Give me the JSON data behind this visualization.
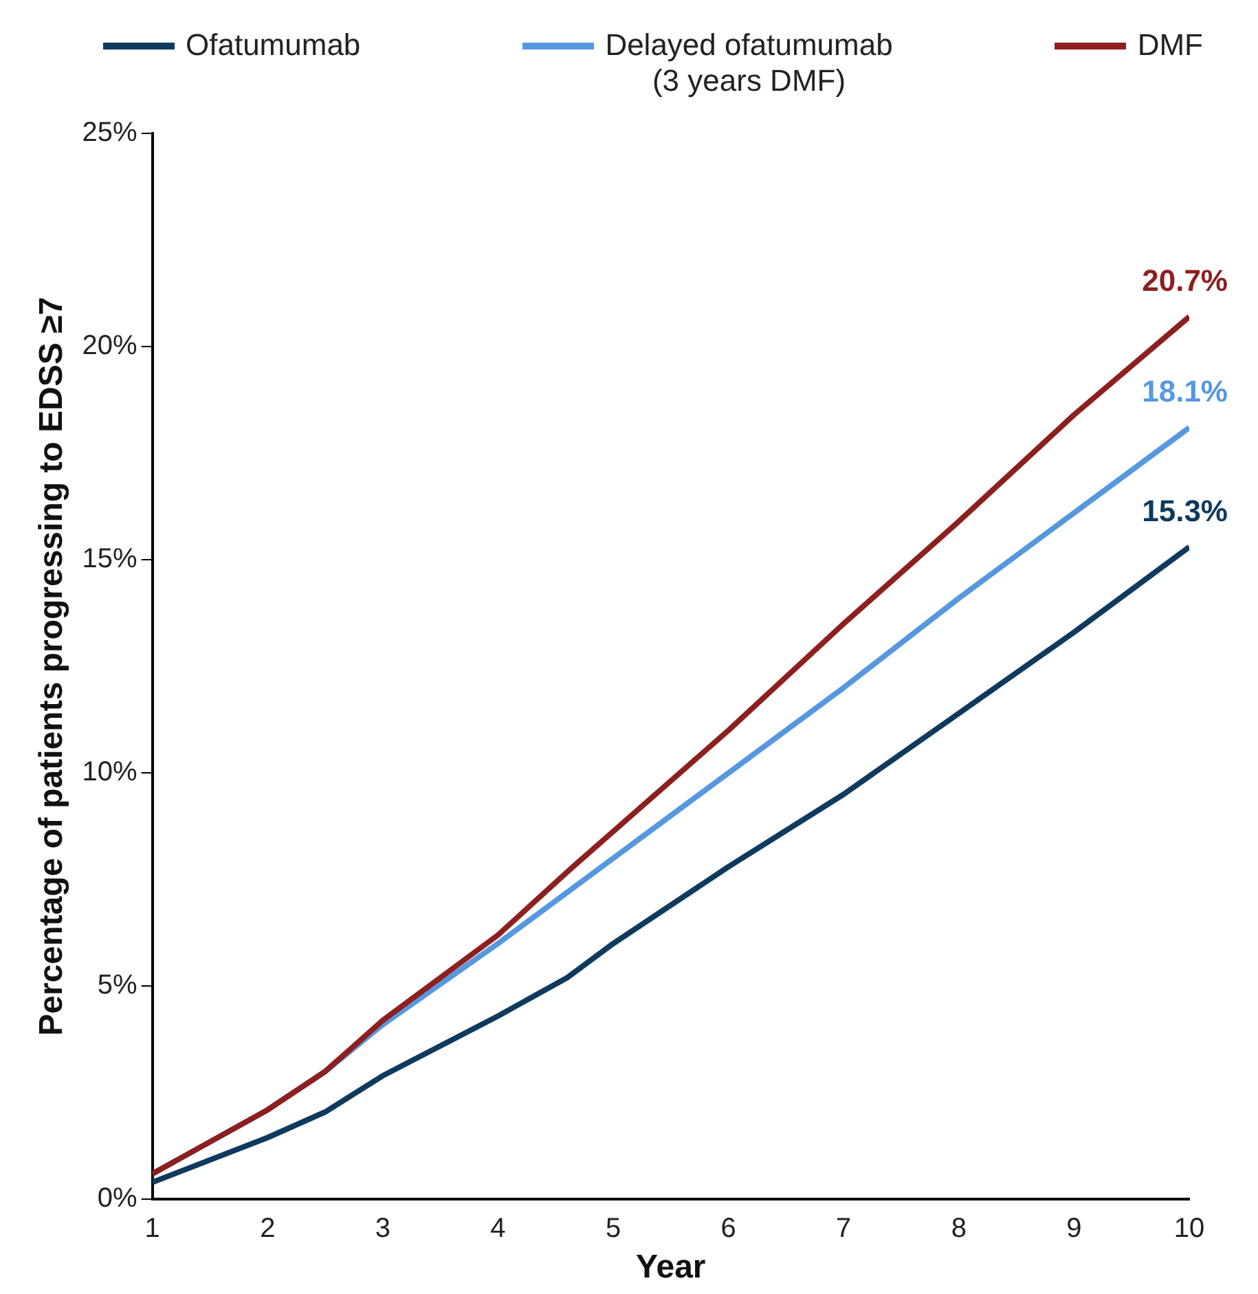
{
  "chart_data": {
    "type": "line",
    "xlabel": "Year",
    "ylabel": "Percentage of patients progressing to EDSS ≥7",
    "xlim": [
      1,
      10
    ],
    "xticks": [
      1,
      2,
      3,
      4,
      5,
      6,
      7,
      8,
      9,
      10
    ],
    "ylim": [
      0,
      25
    ],
    "yticks": [
      {
        "value": 0,
        "label": "0%"
      },
      {
        "value": 5,
        "label": "5%"
      },
      {
        "value": 10,
        "label": "10%"
      },
      {
        "value": 15,
        "label": "15%"
      },
      {
        "value": 20,
        "label": "20%"
      },
      {
        "value": 25,
        "label": "25%"
      }
    ],
    "grid": false,
    "legend": "top",
    "marker": "none",
    "line_style": "solid",
    "series": [
      {
        "name": "Ofatumumab",
        "color": "#0e3a5f",
        "x": [
          1,
          2,
          2.5,
          3,
          4,
          4.6,
          5,
          6,
          7,
          8,
          9,
          10
        ],
        "values": [
          0.4,
          1.45,
          2.05,
          2.9,
          4.3,
          5.2,
          6.0,
          7.8,
          9.5,
          11.4,
          13.3,
          15.3
        ],
        "value_labels": [
          null,
          null,
          null,
          null,
          null,
          null,
          null,
          null,
          null,
          null,
          null,
          "15.3%"
        ]
      },
      {
        "name": "Delayed ofatumumab\n(3 years DMF)",
        "color": "#5598e0",
        "x": [
          1,
          2,
          2.5,
          3,
          4,
          5,
          6,
          7,
          8,
          9,
          10
        ],
        "values": [
          0.6,
          2.1,
          3.0,
          4.1,
          6.0,
          8.0,
          10.0,
          12.0,
          14.1,
          16.1,
          18.1
        ],
        "value_labels": [
          null,
          null,
          null,
          null,
          null,
          null,
          null,
          null,
          null,
          null,
          "18.1%"
        ]
      },
      {
        "name": "DMF",
        "color": "#8e1f1f",
        "x": [
          1,
          2,
          2.5,
          3,
          4,
          4.65,
          6,
          7,
          8,
          9,
          10
        ],
        "values": [
          0.6,
          2.1,
          3.0,
          4.2,
          6.2,
          7.8,
          11.0,
          13.5,
          15.9,
          18.4,
          20.7
        ],
        "value_labels": [
          null,
          null,
          null,
          null,
          null,
          null,
          null,
          null,
          null,
          null,
          "20.7%"
        ]
      }
    ]
  }
}
